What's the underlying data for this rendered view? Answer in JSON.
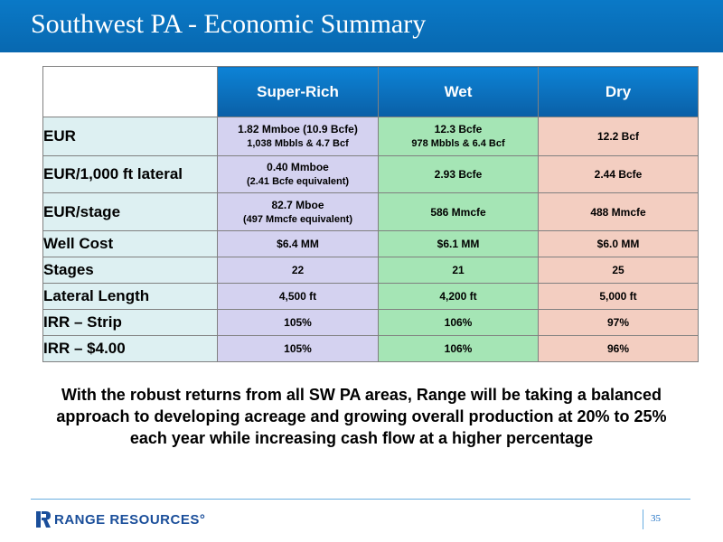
{
  "slide": {
    "title": "Southwest PA - Economic Summary",
    "page_number": "35"
  },
  "table": {
    "columns": [
      "Super-Rich",
      "Wet",
      "Dry"
    ],
    "rows": [
      {
        "label": "EUR",
        "cells": [
          [
            "1.82 Mmboe (10.9 Bcfe)",
            "1,038 Mbbls & 4.7 Bcf"
          ],
          [
            "12.3 Bcfe",
            "978 Mbbls & 6.4 Bcf"
          ],
          [
            "12.2 Bcf"
          ]
        ]
      },
      {
        "label": "EUR/1,000 ft lateral",
        "cells": [
          [
            "0.40 Mmboe",
            "(2.41 Bcfe equivalent)"
          ],
          [
            "2.93 Bcfe"
          ],
          [
            "2.44 Bcfe"
          ]
        ]
      },
      {
        "label": "EUR/stage",
        "cells": [
          [
            "82.7 Mboe",
            "(497 Mmcfe equivalent)"
          ],
          [
            "586 Mmcfe"
          ],
          [
            "488 Mmcfe"
          ]
        ]
      },
      {
        "label": "Well Cost",
        "cells": [
          [
            "$6.4 MM"
          ],
          [
            "$6.1 MM"
          ],
          [
            "$6.0 MM"
          ]
        ]
      },
      {
        "label": "Stages",
        "cells": [
          [
            "22"
          ],
          [
            "21"
          ],
          [
            "25"
          ]
        ]
      },
      {
        "label": "Lateral Length",
        "cells": [
          [
            "4,500 ft"
          ],
          [
            "4,200 ft"
          ],
          [
            "5,000 ft"
          ]
        ]
      },
      {
        "label": "IRR – Strip",
        "cells": [
          [
            "105%"
          ],
          [
            "106%"
          ],
          [
            "97%"
          ]
        ]
      },
      {
        "label": "IRR – $4.00",
        "cells": [
          [
            "105%"
          ],
          [
            "106%"
          ],
          [
            "96%"
          ]
        ]
      }
    ]
  },
  "message": "With the robust returns from all SW PA areas, Range will be taking a balanced approach to developing acreage and growing overall production at 20% to 25% each year while increasing cash flow at a higher percentage",
  "footer": {
    "logo_text": "RANGE RESOURCES°"
  },
  "colors": {
    "title_bar": "#0a79c7",
    "header_fill": "#0a6fbe",
    "label_fill": "#ddf0f2",
    "super_rich_fill": "#d4d2f0",
    "wet_fill": "#a5e5b5",
    "dry_fill": "#f3cec1"
  }
}
